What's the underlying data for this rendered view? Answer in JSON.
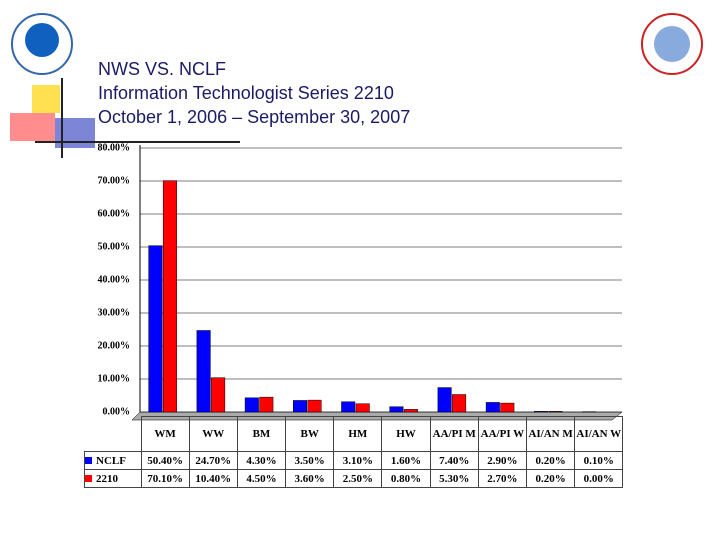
{
  "chart_data": {
    "type": "bar",
    "title": "NWS VS. NCLF",
    "subtitle": [
      "Information Technologist Series 2210",
      "October 1, 2006 – September 30, 2007"
    ],
    "categories": [
      "WM",
      "WW",
      "BM",
      "BW",
      "HM",
      "HW",
      "AA/PI M",
      "AA/PI W",
      "AI/AN M",
      "AI/AN W"
    ],
    "series": [
      {
        "name": "NCLF",
        "color": "#0000ff",
        "values": [
          50.4,
          24.7,
          4.3,
          3.5,
          3.1,
          1.6,
          7.4,
          2.9,
          0.2,
          0.1
        ],
        "value_labels": [
          "50.40%",
          "24.70%",
          "4.30%",
          "3.50%",
          "3.10%",
          "1.60%",
          "7.40%",
          "2.90%",
          "0.20%",
          "0.10%"
        ]
      },
      {
        "name": "2210",
        "color": "#ff0000",
        "values": [
          70.1,
          10.4,
          4.5,
          3.6,
          2.5,
          0.8,
          5.3,
          2.7,
          0.2,
          0.0
        ],
        "value_labels": [
          "70.10%",
          "10.40%",
          "4.50%",
          "3.60%",
          "2.50%",
          "0.80%",
          "5.30%",
          "2.70%",
          "0.20%",
          "0.00%"
        ]
      }
    ],
    "ylim": [
      0,
      80
    ],
    "yticks": [
      {
        "value": 0,
        "label": "0.00%"
      },
      {
        "value": 10,
        "label": "10.00%"
      },
      {
        "value": 20,
        "label": "20.00%"
      },
      {
        "value": 30,
        "label": "30.00%"
      },
      {
        "value": 40,
        "label": "40.00%"
      },
      {
        "value": 50,
        "label": "50.00%"
      },
      {
        "value": 60,
        "label": "60.00%"
      },
      {
        "value": 70,
        "label": "70.00%"
      },
      {
        "value": 80,
        "label": "80.00%"
      }
    ],
    "grid": true
  }
}
